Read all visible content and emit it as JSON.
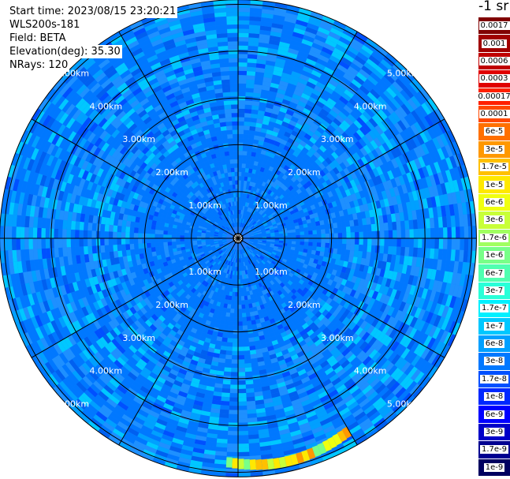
{
  "info": {
    "start_time": "Start time: 2023/08/15 23:20:21",
    "instrument": "WLS200s-181",
    "field": "Field: BETA",
    "elevation": "Elevation(deg): 35.30",
    "nrays": "NRays: 120"
  },
  "colorbar": {
    "title": "-1 sr",
    "labels": [
      "0.0017",
      "0.001",
      "0.0006",
      "0.0003",
      "0.00017",
      "0.0001",
      "6e-5",
      "3e-5",
      "1.7e-5",
      "1e-5",
      "6e-6",
      "3e-6",
      "1.7e-6",
      "1e-6",
      "6e-7",
      "3e-7",
      "1.7e-7",
      "1e-7",
      "6e-8",
      "3e-8",
      "1.7e-8",
      "1e-8",
      "6e-9",
      "3e-9",
      "1.7e-9",
      "1e-9"
    ],
    "colors": [
      "#800000",
      "#a00000",
      "#c00000",
      "#e00000",
      "#ff2000",
      "#ff4800",
      "#ff7000",
      "#ff9800",
      "#ffc000",
      "#ffe800",
      "#f0ff10",
      "#c8ff38",
      "#a0ff60",
      "#78ff88",
      "#50ffb0",
      "#28ffd8",
      "#00f0ff",
      "#00c8ff",
      "#00a0ff",
      "#0078ff",
      "#0050ff",
      "#0028ff",
      "#0000ff",
      "#0000c8",
      "#000090",
      "#000060"
    ]
  },
  "chart_data": {
    "type": "heatmap",
    "projection": "polar PPI",
    "field": "BETA",
    "range_rings_km": [
      1,
      2,
      3,
      4,
      5
    ],
    "ring_labels": [
      "1.00km",
      "2.00km",
      "3.00km",
      "4.00km",
      "5.00km"
    ],
    "max_range_km": 5.1,
    "azimuth_spokes_deg": [
      0,
      30,
      60,
      90,
      120,
      150,
      180,
      210,
      240,
      270,
      300,
      330
    ],
    "nrays": 120,
    "background_level": "1.7e-8",
    "background_colors": [
      "#0078ff",
      "#1e90ff",
      "#00a0ff",
      "#0050ff",
      "#00c8ff",
      "#0060f0"
    ],
    "feature": {
      "description_level": "1e-5 to 6e-5",
      "azimuth_deg_range": [
        150,
        183
      ],
      "range_km": [
        4.65,
        4.95
      ]
    }
  }
}
